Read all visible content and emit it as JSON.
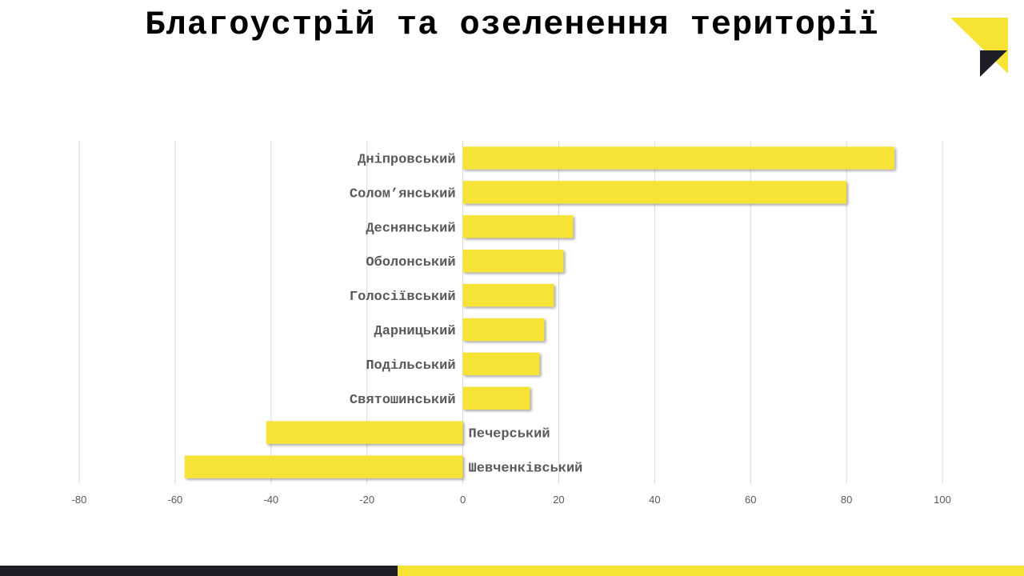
{
  "title": "Благоустрій та озеленення території",
  "colors": {
    "bar": "#F6E335",
    "accent_yellow": "#F7E334",
    "dark": "#1E1E29",
    "grid": "#D9D9D9",
    "tick_text": "#595959",
    "category_text": "#595959"
  },
  "logo": {
    "icon": "logo-triangles-icon"
  },
  "chart_data": {
    "type": "bar",
    "orientation": "horizontal",
    "title": "",
    "xlabel": "",
    "ylabel": "",
    "xlim": [
      -80,
      100
    ],
    "xticks": [
      -80,
      -60,
      -40,
      -20,
      0,
      20,
      40,
      60,
      80,
      100
    ],
    "grid": true,
    "categories": [
      "Дніпровський",
      "Солом’янський",
      "Деснянський",
      "Оболонський",
      "Голосіївський",
      "Дарницький",
      "Подільський",
      "Святошинський",
      "Печерський",
      "Шевченківський"
    ],
    "values": [
      90,
      80,
      23,
      21,
      19,
      17,
      16,
      14,
      -41,
      -58
    ]
  }
}
